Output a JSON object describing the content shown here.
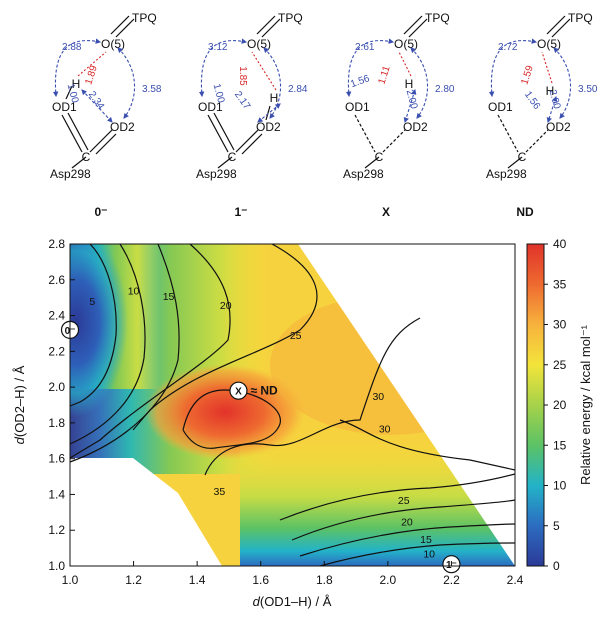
{
  "molecules": [
    {
      "state": "0⁻",
      "atoms": {
        "tpq": "TPQ",
        "o5": "O(5)",
        "h": "H",
        "od1": "OD1",
        "od2": "OD2",
        "c": "C",
        "asp": "Asp298"
      },
      "distances": {
        "d1": "2.88",
        "d2": "1.89",
        "d3": "3.58",
        "d4": "2.34",
        "d5": "1.00"
      }
    },
    {
      "state": "1⁻",
      "atoms": {
        "tpq": "TPQ",
        "o5": "O(5)",
        "h": "H",
        "od1": "OD1",
        "od2": "OD2",
        "c": "C",
        "asp": "Asp298"
      },
      "distances": {
        "d1": "3.12",
        "d2": "1.85",
        "d3": "2.84",
        "d4": "2.17",
        "d5": "1.00"
      }
    },
    {
      "state": "X",
      "atoms": {
        "tpq": "TPQ",
        "o5": "O(5)",
        "h": "H",
        "od1": "OD1",
        "od2": "OD2",
        "c": "C",
        "asp": "Asp298"
      },
      "distances": {
        "d1": "2.61",
        "d2": "1.11",
        "d3": "2.80",
        "d4": "1.56",
        "d5": "2.00"
      }
    },
    {
      "state": "ND",
      "atoms": {
        "tpq": "TPQ",
        "o5": "O(5)",
        "h": "H",
        "od1": "OD1",
        "od2": "OD2",
        "c": "C",
        "asp": "Asp298"
      },
      "distances": {
        "d1": "2.72",
        "d2": "1.59",
        "d3": "3.50",
        "d4": "1.56",
        "d5": "2.00"
      }
    }
  ],
  "chart_data": {
    "type": "heatmap",
    "xlabel_prefix": "d",
    "xlabel": "(OD1–H) / Å",
    "ylabel_prefix": "d",
    "ylabel": "(OD2–H) / Å",
    "xlim": [
      1.0,
      2.4
    ],
    "ylim": [
      1.0,
      2.8
    ],
    "xticks": [
      "1.0",
      "1.2",
      "1.4",
      "1.6",
      "1.8",
      "2.0",
      "2.2",
      "2.4"
    ],
    "yticks": [
      "1.0",
      "1.2",
      "1.4",
      "1.6",
      "1.8",
      "2.0",
      "2.2",
      "2.4",
      "2.6",
      "2.8"
    ],
    "colorbar": {
      "label": "Relative energy  / kcal mol⁻¹",
      "range": [
        0,
        40
      ],
      "ticks": [
        "0",
        "5",
        "10",
        "15",
        "20",
        "25",
        "30",
        "35",
        "40"
      ],
      "colors": [
        "#2b3a97",
        "#2c6cc0",
        "#23b3c8",
        "#5cc265",
        "#a6d24a",
        "#f3e43b",
        "#f7b23d",
        "#ee6a30",
        "#e0332a"
      ]
    },
    "contour_labels": [
      {
        "text": "5",
        "x": 1.07,
        "y": 2.48
      },
      {
        "text": "10",
        "x": 1.2,
        "y": 2.54
      },
      {
        "text": "15",
        "x": 1.31,
        "y": 2.51
      },
      {
        "text": "20",
        "x": 1.49,
        "y": 2.46
      },
      {
        "text": "25",
        "x": 1.71,
        "y": 2.29
      },
      {
        "text": "30",
        "x": 1.97,
        "y": 1.95
      },
      {
        "text": "30",
        "x": 1.99,
        "y": 1.77
      },
      {
        "text": "35",
        "x": 1.47,
        "y": 1.42
      },
      {
        "text": "25",
        "x": 2.05,
        "y": 1.37
      },
      {
        "text": "20",
        "x": 2.06,
        "y": 1.25
      },
      {
        "text": "15",
        "x": 2.12,
        "y": 1.15
      },
      {
        "text": "10",
        "x": 2.13,
        "y": 1.07
      }
    ],
    "annotations": [
      {
        "marker": "0⁻",
        "x": 1.0,
        "y": 2.32,
        "text": ""
      },
      {
        "marker": "X",
        "x": 1.53,
        "y": 1.98,
        "text": "≈ ND"
      },
      {
        "marker": "1⁻",
        "x": 2.2,
        "y": 1.01,
        "text": ""
      }
    ]
  }
}
